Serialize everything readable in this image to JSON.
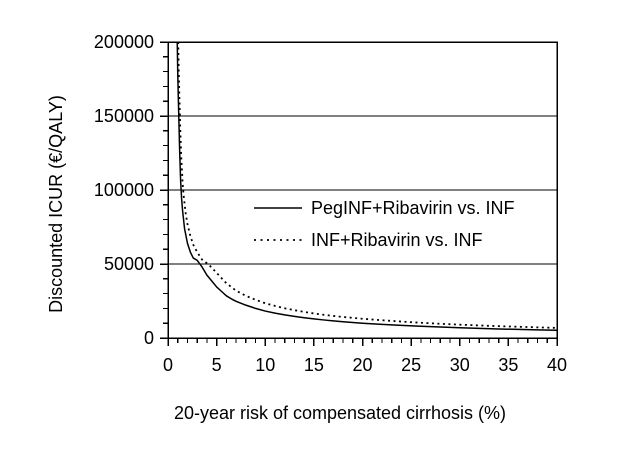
{
  "figure": {
    "background_color": "#ffffff",
    "ink_color": "#000000"
  },
  "chart_data": {
    "type": "line",
    "title": "",
    "xlabel": "20-year risk of compensated cirrhosis (%)",
    "ylabel": "Discounted ICUR (€/QALY)",
    "xlim": [
      0,
      40
    ],
    "ylim": [
      0,
      200000
    ],
    "x_major_ticks": [
      0,
      5,
      10,
      15,
      20,
      25,
      30,
      35,
      40
    ],
    "x_tick_labels": [
      "0",
      "5",
      "10",
      "15",
      "20",
      "25",
      "30",
      "35",
      "40"
    ],
    "x_minor_step": 1,
    "y_major_ticks": [
      0,
      50000,
      100000,
      150000,
      200000
    ],
    "y_tick_labels": [
      "0",
      "50000",
      "100000",
      "150000",
      "200000"
    ],
    "y_minor_step": 10000,
    "grid": "horizontal-major-only",
    "legend_position": "inside-upper-middle-right",
    "series": [
      {
        "name": "PegINF+Ribavirin vs. INF",
        "style": "solid",
        "color": "#000000",
        "points": [
          [
            0.95,
            200000
          ],
          [
            1.0,
            180000
          ],
          [
            1.05,
            165000
          ],
          [
            1.1,
            152000
          ],
          [
            1.2,
            126000
          ],
          [
            1.3,
            106000
          ],
          [
            1.4,
            94000
          ],
          [
            1.5,
            86000
          ],
          [
            1.7,
            74000
          ],
          [
            2.0,
            64000
          ],
          [
            2.3,
            58000
          ],
          [
            2.6,
            54000
          ],
          [
            3.0,
            52500
          ],
          [
            3.5,
            48000
          ],
          [
            4.0,
            42500
          ],
          [
            4.5,
            38500
          ],
          [
            5.0,
            34500
          ],
          [
            5.5,
            31500
          ],
          [
            6.0,
            28500
          ],
          [
            6.5,
            26500
          ],
          [
            7.0,
            24800
          ],
          [
            8.0,
            22200
          ],
          [
            9.0,
            20000
          ],
          [
            10,
            18200
          ],
          [
            11,
            16800
          ],
          [
            12,
            15600
          ],
          [
            13,
            14600
          ],
          [
            14,
            13700
          ],
          [
            15,
            12900
          ],
          [
            16,
            12200
          ],
          [
            17,
            11600
          ],
          [
            18,
            11000
          ],
          [
            19,
            10500
          ],
          [
            20,
            10000
          ],
          [
            22,
            9200
          ],
          [
            24,
            8500
          ],
          [
            26,
            7900
          ],
          [
            28,
            7400
          ],
          [
            30,
            6900
          ],
          [
            32,
            6500
          ],
          [
            34,
            6100
          ],
          [
            36,
            5800
          ],
          [
            38,
            5500
          ],
          [
            40,
            5200
          ]
        ]
      },
      {
        "name": "INF+Ribavirin vs. INF",
        "style": "dotted",
        "color": "#000000",
        "points": [
          [
            1.05,
            200000
          ],
          [
            1.1,
            182000
          ],
          [
            1.15,
            168000
          ],
          [
            1.25,
            144000
          ],
          [
            1.35,
            124000
          ],
          [
            1.5,
            105000
          ],
          [
            1.6,
            97000
          ],
          [
            1.8,
            85000
          ],
          [
            2.0,
            77000
          ],
          [
            2.3,
            69000
          ],
          [
            2.6,
            63000
          ],
          [
            3.0,
            58000
          ],
          [
            3.5,
            53000
          ],
          [
            4.0,
            50500
          ],
          [
            4.2,
            49500
          ],
          [
            4.5,
            47500
          ],
          [
            5.0,
            44000
          ],
          [
            5.5,
            40500
          ],
          [
            6.0,
            37000
          ],
          [
            6.5,
            34500
          ],
          [
            7.0,
            32000
          ],
          [
            8.0,
            28500
          ],
          [
            9.0,
            25800
          ],
          [
            10,
            23500
          ],
          [
            11,
            21700
          ],
          [
            12,
            20100
          ],
          [
            13,
            18800
          ],
          [
            14,
            17600
          ],
          [
            15,
            16600
          ],
          [
            16,
            15700
          ],
          [
            17,
            14900
          ],
          [
            18,
            14200
          ],
          [
            19,
            13600
          ],
          [
            20,
            13000
          ],
          [
            22,
            12000
          ],
          [
            24,
            11100
          ],
          [
            26,
            10300
          ],
          [
            28,
            9600
          ],
          [
            30,
            9000
          ],
          [
            32,
            8500
          ],
          [
            34,
            8000
          ],
          [
            36,
            7600
          ],
          [
            38,
            7200
          ],
          [
            40,
            6800
          ]
        ]
      }
    ]
  }
}
